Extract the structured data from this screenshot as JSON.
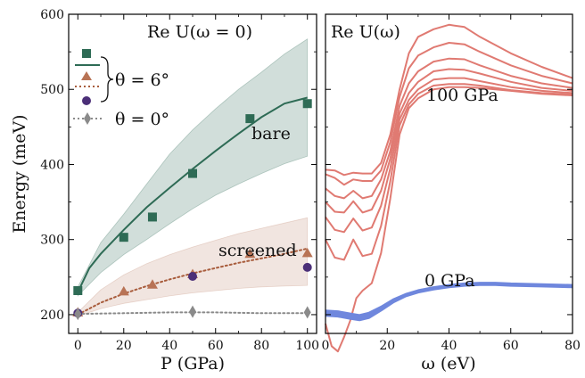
{
  "chart_data": [
    {
      "type": "scatter",
      "title": "Re U(ω = 0)",
      "xlabel": "P (GPa)",
      "ylabel": "Energy (meV)",
      "xlim": [
        -4,
        104
      ],
      "ylim": [
        175,
        600
      ],
      "xticks": [
        0,
        20,
        40,
        60,
        80,
        100
      ],
      "yticks": [
        200,
        300,
        400,
        500,
        600
      ],
      "grid": false,
      "legend": {
        "placement": "top-left",
        "group_label": "θ = 6°",
        "single_label": "θ = 0°"
      },
      "annotations": [
        "bare",
        "screened"
      ],
      "series": [
        {
          "key": "bare_markers",
          "marker": "square",
          "color": "#2e6b55",
          "x": [
            0,
            20,
            32.5,
            50,
            75,
            100
          ],
          "y": [
            232,
            303,
            330,
            388,
            461,
            481
          ]
        },
        {
          "key": "bare_fit",
          "kind": "line",
          "style": "solid",
          "color": "#2e6b55",
          "x": [
            0,
            5,
            10,
            20,
            30,
            40,
            50,
            60,
            70,
            80,
            90,
            100
          ],
          "y": [
            230,
            262,
            281,
            313,
            343,
            369,
            394,
            418,
            441,
            463,
            481,
            489
          ]
        },
        {
          "key": "bare_band",
          "kind": "band",
          "color": "#2e6b55",
          "x": [
            0,
            10,
            20,
            30,
            40,
            50,
            60,
            70,
            80,
            90,
            100
          ],
          "lower": [
            225,
            256,
            280,
            300,
            321,
            341,
            359,
            374,
            388,
            401,
            411
          ],
          "upper": [
            237,
            296,
            334,
            374,
            414,
            446,
            474,
            500,
            523,
            547,
            567
          ]
        },
        {
          "key": "screened_markers",
          "marker": "triangle",
          "color": "#b87355",
          "x": [
            0,
            20,
            32.5,
            50,
            75,
            100
          ],
          "y": [
            203,
            231,
            240,
            254,
            281,
            282
          ]
        },
        {
          "key": "screened_fit",
          "kind": "line",
          "style": "dotted",
          "color": "#a85c3c",
          "x": [
            0,
            10,
            20,
            30,
            40,
            50,
            60,
            70,
            80,
            90,
            100
          ],
          "y": [
            200,
            216,
            228,
            238,
            247,
            255,
            262,
            269,
            275,
            281,
            288
          ]
        },
        {
          "key": "screened_band",
          "kind": "band",
          "color": "#c08870",
          "x": [
            0,
            10,
            20,
            30,
            40,
            50,
            60,
            70,
            80,
            90,
            100
          ],
          "lower": [
            198,
            208,
            215,
            220,
            225,
            229,
            232,
            235,
            237,
            238,
            239
          ],
          "upper": [
            203,
            233,
            253,
            268,
            280,
            290,
            299,
            308,
            315,
            322,
            329
          ]
        },
        {
          "key": "circle_markers",
          "marker": "circle",
          "color": "#4b2f78",
          "x": [
            0,
            50,
            100
          ],
          "y": [
            202,
            251,
            263
          ]
        },
        {
          "key": "theta0_line",
          "kind": "line",
          "style": "dotted",
          "color": "#8a8a8a",
          "x": [
            0,
            20,
            40,
            60,
            80,
            100
          ],
          "y": [
            201,
            202,
            203,
            203,
            202,
            202
          ]
        },
        {
          "key": "theta0_markers",
          "marker": "diamond",
          "color": "#8a8a8a",
          "x": [
            0,
            50,
            100
          ],
          "y": [
            201,
            204,
            203
          ]
        }
      ]
    },
    {
      "type": "line",
      "title": "Re U(ω)",
      "xlabel": "ω (eV)",
      "xlim": [
        0,
        80
      ],
      "ylim": [
        175,
        600
      ],
      "xticks": [
        0,
        20,
        40,
        60,
        80
      ],
      "grid": false,
      "annotations": [
        "100 GPa",
        "0 GPa"
      ],
      "series": [
        {
          "group": "100 GPa",
          "color": "#e07a72",
          "x": [
            0,
            3,
            6,
            9,
            12,
            15,
            18,
            21,
            24,
            27,
            30,
            35,
            40,
            45,
            50,
            60,
            70,
            80
          ],
          "y": [
            393,
            392,
            386,
            389,
            388,
            388,
            402,
            440,
            500,
            548,
            570,
            580,
            586,
            583,
            570,
            548,
            530,
            515
          ]
        },
        {
          "group": "100 GPa",
          "color": "#e07a72",
          "x": [
            0,
            3,
            6,
            9,
            12,
            15,
            18,
            21,
            24,
            27,
            30,
            35,
            40,
            45,
            50,
            60,
            70,
            80
          ],
          "y": [
            387,
            382,
            373,
            380,
            378,
            378,
            392,
            430,
            490,
            528,
            545,
            556,
            562,
            560,
            550,
            532,
            518,
            508
          ]
        },
        {
          "group": "100 GPa",
          "color": "#e07a72",
          "x": [
            0,
            3,
            6,
            9,
            12,
            15,
            18,
            21,
            24,
            27,
            30,
            35,
            40,
            45,
            50,
            60,
            70,
            80
          ],
          "y": [
            368,
            358,
            355,
            365,
            355,
            358,
            380,
            418,
            478,
            508,
            524,
            537,
            541,
            540,
            532,
            518,
            508,
            502
          ]
        },
        {
          "group": "100 GPa",
          "color": "#e07a72",
          "x": [
            0,
            3,
            6,
            9,
            12,
            15,
            18,
            21,
            24,
            27,
            30,
            35,
            40,
            45,
            50,
            60,
            70,
            80
          ],
          "y": [
            350,
            337,
            336,
            351,
            336,
            340,
            365,
            408,
            468,
            495,
            510,
            524,
            527,
            526,
            521,
            510,
            502,
            498
          ]
        },
        {
          "group": "100 GPa",
          "color": "#e07a72",
          "x": [
            0,
            3,
            6,
            9,
            12,
            15,
            18,
            21,
            24,
            27,
            30,
            35,
            40,
            45,
            50,
            60,
            70,
            80
          ],
          "y": [
            330,
            313,
            310,
            328,
            312,
            316,
            345,
            395,
            460,
            486,
            500,
            513,
            515,
            515,
            511,
            503,
            498,
            495
          ]
        },
        {
          "group": "100 GPa",
          "color": "#e07a72",
          "x": [
            0,
            3,
            6,
            9,
            12,
            15,
            18,
            21,
            24,
            27,
            30,
            35,
            40,
            45,
            50,
            60,
            70,
            80
          ],
          "y": [
            300,
            276,
            273,
            300,
            278,
            281,
            318,
            378,
            452,
            480,
            494,
            505,
            507,
            507,
            505,
            499,
            495,
            493
          ]
        },
        {
          "group": "100 GPa",
          "color": "#e07a72",
          "x": [
            0,
            2,
            4,
            6,
            8,
            10,
            12,
            15,
            18,
            21,
            24,
            27,
            30,
            35,
            40,
            45,
            50,
            60,
            70,
            80
          ],
          "y": [
            188,
            158,
            151,
            170,
            192,
            222,
            232,
            242,
            282,
            355,
            440,
            475,
            488,
            500,
            503,
            503,
            502,
            498,
            494,
            492
          ]
        },
        {
          "group": "0 GPa",
          "color": "#6f87dd",
          "x": [
            0,
            4,
            8,
            11,
            14,
            18,
            22,
            26,
            30,
            35,
            40,
            45,
            50,
            55,
            60,
            70,
            80
          ],
          "y": [
            205,
            204,
            201,
            199,
            202,
            210,
            220,
            227,
            232,
            236,
            239,
            241,
            242,
            242,
            241,
            240,
            239
          ]
        },
        {
          "group": "0 GPa",
          "color": "#6f87dd",
          "x": [
            0,
            4,
            8,
            11,
            14,
            18,
            22,
            26,
            30,
            35,
            40,
            45,
            50,
            55,
            60,
            70,
            80
          ],
          "y": [
            202,
            201,
            198,
            196,
            199,
            208,
            218,
            226,
            231,
            235,
            238,
            240,
            241,
            241,
            240,
            239,
            238
          ]
        },
        {
          "group": "0 GPa",
          "color": "#6f87dd",
          "x": [
            0,
            4,
            8,
            11,
            14,
            18,
            22,
            26,
            30,
            35,
            40,
            45,
            50,
            55,
            60,
            70,
            80
          ],
          "y": [
            199,
            198,
            195,
            193,
            196,
            206,
            217,
            225,
            230,
            234,
            237,
            239,
            240,
            240,
            239,
            238,
            237
          ]
        }
      ]
    }
  ]
}
